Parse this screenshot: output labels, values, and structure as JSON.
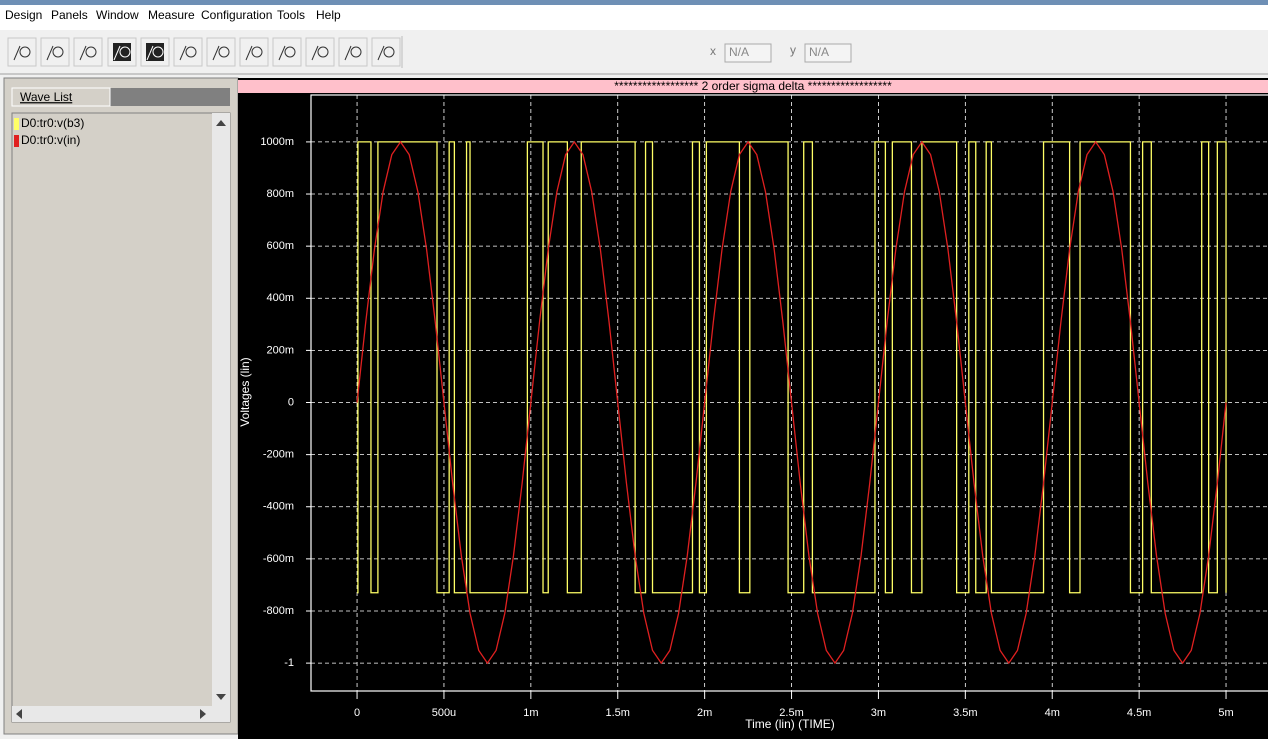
{
  "menu": [
    "Design",
    "Panels",
    "Window",
    "Measure",
    "Configuration",
    "Tools",
    "Help"
  ],
  "toolbar": {
    "x_label": "x",
    "x_value": "N/A",
    "y_label": "y",
    "y_value": "N/A"
  },
  "wave_list": {
    "tab": "Wave List"
  },
  "chart_data": {
    "type": "line",
    "title": "****************** 2 order sigma delta ******************",
    "x_label": "Time (lin) (TIME)",
    "y_label": "Voltages (lin)",
    "xlim": [
      -0.000265,
      0.00523
    ],
    "ylim": [
      -1.107,
      1.18
    ],
    "grid": true,
    "xticks": [
      0,
      {
        "value": 0.0005,
        "label": "500u"
      },
      {
        "value": 0.001,
        "label": "1m"
      },
      {
        "value": 0.0015,
        "label": "1.5m"
      },
      {
        "value": 0.002,
        "label": "2m"
      },
      {
        "value": 0.0025,
        "label": "2.5m"
      },
      {
        "value": 0.003,
        "label": "3m"
      },
      {
        "value": 0.0035,
        "label": "3.5m"
      },
      {
        "value": 0.004,
        "label": "4m"
      },
      {
        "value": 0.0045,
        "label": "4.5m"
      },
      {
        "value": 0.005,
        "label": "5m"
      }
    ],
    "yticks": [
      {
        "value": 1,
        "label": "1000m"
      },
      {
        "value": 0.8,
        "label": "800m"
      },
      {
        "value": 0.6,
        "label": "600m"
      },
      {
        "value": 0.4,
        "label": "400m"
      },
      {
        "value": 0.2,
        "label": "200m"
      },
      0,
      {
        "value": -0.2,
        "label": "-200m"
      },
      {
        "value": -0.4,
        "label": "-400m"
      },
      {
        "value": -0.6,
        "label": "-600m"
      },
      {
        "value": -0.8,
        "label": "-800m"
      },
      -1
    ],
    "series": [
      {
        "name": "D0:tr0:v(b3)",
        "color": "#ffff66",
        "x": [
          0,
          5e-06,
          5e-06,
          8e-05,
          8e-05,
          0.00012,
          0.00012,
          0.00046,
          0.00046,
          0.00053,
          0.00053,
          0.00056,
          0.00056,
          0.00063,
          0.00063,
          0.00065,
          0.00065,
          0.00098,
          0.00098,
          0.00107,
          0.00107,
          0.0011,
          0.0011,
          0.00121,
          0.00121,
          0.00129,
          0.00129,
          0.0016,
          0.0016,
          0.00166,
          0.00166,
          0.0017,
          0.0017,
          0.00193,
          0.00193,
          0.00197,
          0.00197,
          0.00201,
          0.00201,
          0.0022,
          0.0022,
          0.00226,
          0.00226,
          0.00248,
          0.00248,
          0.00257,
          0.00257,
          0.00262,
          0.00262,
          0.00298,
          0.00298,
          0.00304,
          0.00304,
          0.00308,
          0.00308,
          0.00319,
          0.00319,
          0.00325,
          0.00325,
          0.00345,
          0.00345,
          0.00352,
          0.00352,
          0.00356,
          0.00356,
          0.00362,
          0.00362,
          0.00365,
          0.00365,
          0.00395,
          0.00395,
          0.0041,
          0.0041,
          0.00416,
          0.00416,
          0.00445,
          0.00445,
          0.00452,
          0.00452,
          0.00457,
          0.00457,
          0.00486,
          0.00486,
          0.0049,
          0.0049,
          0.00495,
          0.00495,
          0.005,
          0.005
        ],
        "values": [
          -0.73,
          -0.73,
          1,
          1,
          -0.73,
          -0.73,
          1,
          1,
          -0.73,
          -0.73,
          1,
          1,
          -0.73,
          -0.73,
          1,
          1,
          -0.73,
          -0.73,
          1,
          1,
          -0.73,
          -0.73,
          1,
          1,
          -0.73,
          -0.73,
          1,
          1,
          -0.73,
          -0.73,
          1,
          1,
          -0.73,
          -0.73,
          1,
          1,
          -0.73,
          -0.73,
          1,
          1,
          -0.73,
          -0.73,
          1,
          1,
          -0.73,
          -0.73,
          1,
          1,
          -0.73,
          -0.73,
          1,
          1,
          -0.73,
          -0.73,
          1,
          1,
          -0.73,
          -0.73,
          1,
          1,
          -0.73,
          -0.73,
          1,
          1,
          -0.73,
          -0.73,
          1,
          1,
          -0.73,
          -0.73,
          1,
          1,
          -0.73,
          -0.73,
          1,
          1,
          -0.73,
          -0.73,
          1,
          1,
          -0.73,
          -0.73,
          1,
          1,
          -0.73,
          -0.73,
          1,
          1,
          -0.73
        ]
      },
      {
        "name": "D0:tr0:v(in)",
        "color": "#e02020",
        "x": [
          0,
          5e-05,
          0.0001,
          0.00015,
          0.0002,
          0.00025,
          0.0003,
          0.00035,
          0.0004,
          0.00045,
          0.0005,
          0.00055,
          0.0006,
          0.00065,
          0.0007,
          0.00075,
          0.0008,
          0.00085,
          0.0009,
          0.00095,
          0.001,
          0.00105,
          0.0011,
          0.00115,
          0.0012,
          0.00125,
          0.0013,
          0.00135,
          0.0014,
          0.00145,
          0.0015,
          0.00155,
          0.0016,
          0.00165,
          0.0017,
          0.00175,
          0.0018,
          0.00185,
          0.0019,
          0.00195,
          0.002,
          0.00205,
          0.0021,
          0.00215,
          0.0022,
          0.00225,
          0.0023,
          0.00235,
          0.0024,
          0.00245,
          0.0025,
          0.00255,
          0.0026,
          0.00265,
          0.0027,
          0.00275,
          0.0028,
          0.00285,
          0.0029,
          0.00295,
          0.003,
          0.00305,
          0.0031,
          0.00315,
          0.0032,
          0.00325,
          0.0033,
          0.00335,
          0.0034,
          0.00345,
          0.0035,
          0.00355,
          0.0036,
          0.00365,
          0.0037,
          0.00375,
          0.0038,
          0.00385,
          0.0039,
          0.00395,
          0.004,
          0.00405,
          0.0041,
          0.00415,
          0.0042,
          0.00425,
          0.0043,
          0.00435,
          0.0044,
          0.00445,
          0.0045,
          0.00455,
          0.0046,
          0.00465,
          0.0047,
          0.00475,
          0.0048,
          0.00485,
          0.0049,
          0.00495,
          0.005
        ],
        "values": [
          0,
          0.309,
          0.588,
          0.809,
          0.951,
          1,
          0.951,
          0.809,
          0.588,
          0.309,
          0,
          -0.309,
          -0.588,
          -0.809,
          -0.951,
          -1,
          -0.951,
          -0.809,
          -0.588,
          -0.309,
          0,
          0.309,
          0.588,
          0.809,
          0.951,
          1,
          0.951,
          0.809,
          0.588,
          0.309,
          0,
          -0.309,
          -0.588,
          -0.809,
          -0.951,
          -1,
          -0.951,
          -0.809,
          -0.588,
          -0.309,
          0,
          0.309,
          0.588,
          0.809,
          0.951,
          1,
          0.951,
          0.809,
          0.588,
          0.309,
          0,
          -0.309,
          -0.588,
          -0.809,
          -0.951,
          -1,
          -0.951,
          -0.809,
          -0.588,
          -0.309,
          0,
          0.309,
          0.588,
          0.809,
          0.951,
          1,
          0.951,
          0.809,
          0.588,
          0.309,
          0,
          -0.309,
          -0.588,
          -0.809,
          -0.951,
          -1,
          -0.951,
          -0.809,
          -0.588,
          -0.309,
          0,
          0.309,
          0.588,
          0.809,
          0.951,
          1,
          0.951,
          0.809,
          0.588,
          0.309,
          0,
          -0.309,
          -0.588,
          -0.809,
          -0.951,
          -1,
          -0.951,
          -0.809,
          -0.588,
          -0.309,
          0
        ]
      }
    ]
  }
}
